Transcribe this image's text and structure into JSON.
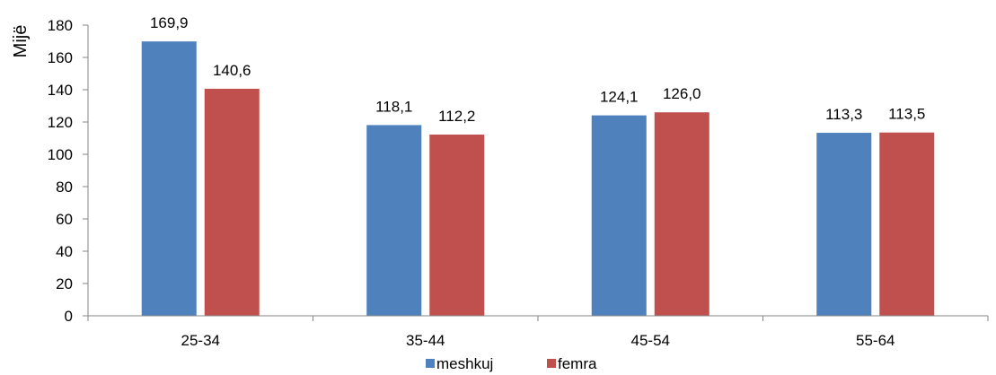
{
  "chart_data": {
    "type": "bar",
    "title": "",
    "xlabel": "",
    "ylabel": "Mijë",
    "categories": [
      "25-34",
      "35-44",
      "45-54",
      "55-64"
    ],
    "series": [
      {
        "name": "meshkuj",
        "color": "#4F81BD",
        "values": [
          169.9,
          118.1,
          124.1,
          113.3
        ],
        "labels": [
          "169,9",
          "118,1",
          "124,1",
          "113,3"
        ]
      },
      {
        "name": "femra",
        "color": "#C0504D",
        "values": [
          140.6,
          112.2,
          126.0,
          113.5
        ],
        "labels": [
          "140,6",
          "112,2",
          "126,0",
          "113,5"
        ]
      }
    ],
    "ylim": [
      0,
      180
    ],
    "yticks": [
      0,
      20,
      40,
      60,
      80,
      100,
      120,
      140,
      160,
      180
    ],
    "grid": false,
    "legend_position": "bottom"
  }
}
